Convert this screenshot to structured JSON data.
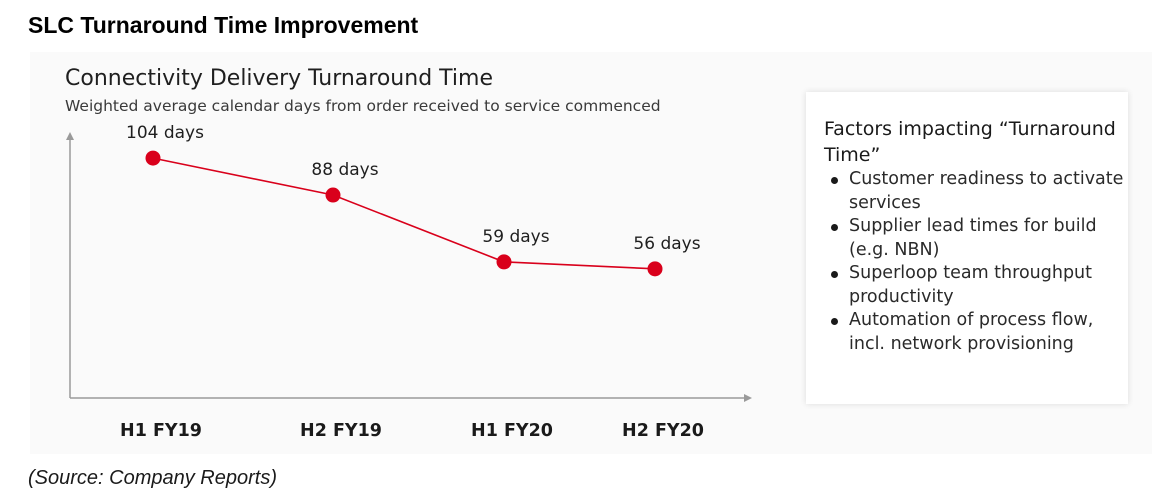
{
  "page_title": "SLC Turnaround Time Improvement",
  "source": "(Source: Company Reports)",
  "chart_data": {
    "type": "line",
    "title": "Connectivity Delivery Turnaround Time",
    "subtitle": "Weighted average calendar days from order received to service commenced",
    "categories": [
      "H1 FY19",
      "H2 FY19",
      "H1 FY20",
      "H2 FY20"
    ],
    "series": [
      {
        "values": [
          104,
          88,
          59,
          56
        ],
        "data_labels": [
          "104 days",
          "88 days",
          "59 days",
          "56 days"
        ],
        "color": "#d9001b"
      }
    ],
    "ylim": [
      0,
      150
    ],
    "grid": false,
    "legend": "none"
  },
  "factors": {
    "heading": "Factors impacting “Turnaround Time”",
    "items": [
      "Customer readiness to activate services",
      "Supplier lead times for build (e.g. NBN)",
      "Superloop team throughput productivity",
      "Automation of process flow, incl. network provisioning"
    ]
  },
  "colors": {
    "accent": "#d9001b",
    "axis": "#9a9a9a",
    "panel_background": "#fafafa"
  }
}
